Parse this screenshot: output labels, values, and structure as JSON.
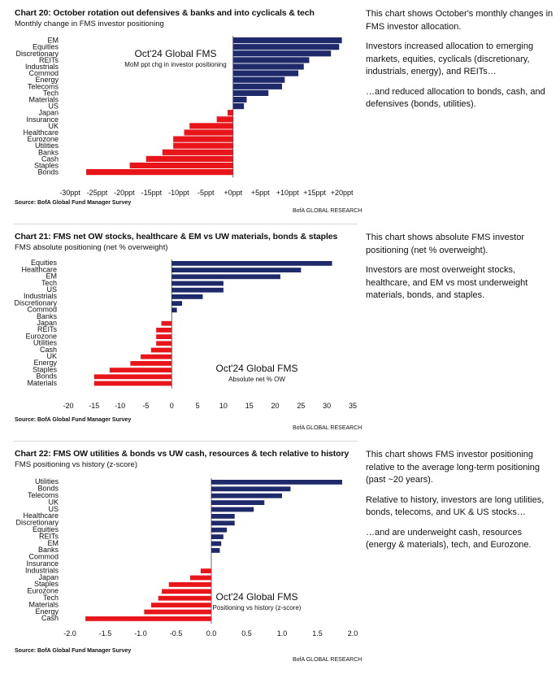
{
  "chart_data": [
    {
      "type": "bar",
      "orientation": "horizontal",
      "title": "Chart 20: October rotation out defensives & banks and into cyclicals & tech",
      "subtitle": "Monthly change in FMS investor positioning",
      "annotation_title": "Oct'24 Global FMS",
      "annotation_sub": "MoM ppt chg in investor positioning",
      "source": "Source: BofA Global Fund Manager Survey",
      "brand": "BofA GLOBAL RESEARCH",
      "categories": [
        "EM",
        "Equities",
        "Discretionary",
        "REITs",
        "Industrials",
        "Commod",
        "Energy",
        "Telecoms",
        "Tech",
        "Materials",
        "US",
        "Japan",
        "Insurance",
        "UK",
        "Healthcare",
        "Eurozone",
        "Utilities",
        "Banks",
        "Cash",
        "Staples",
        "Bonds"
      ],
      "values": [
        20,
        19.5,
        18,
        14,
        13,
        12,
        9.5,
        9,
        6.5,
        2.5,
        2,
        -1,
        -3,
        -8,
        -9,
        -11,
        -11,
        -13,
        -16,
        -19,
        -27
      ],
      "xlim": [
        -30,
        22
      ],
      "ticks": [
        -30,
        -25,
        -20,
        -15,
        -10,
        -5,
        0,
        5,
        10,
        15,
        20
      ],
      "tick_labels": [
        "-30ppt",
        "-25ppt",
        "-20ppt",
        "-15ppt",
        "-10ppt",
        "-5ppt",
        "+0ppt",
        "+5ppt",
        "+10ppt",
        "+15ppt",
        "+20ppt"
      ],
      "colors": {
        "positive": "#1f2a6b",
        "negative": "#e8161b"
      }
    },
    {
      "type": "bar",
      "orientation": "horizontal",
      "title": "Chart 21: FMS net OW stocks, healthcare & EM vs UW materials, bonds & staples",
      "subtitle": "FMS absolute positioning (net % overweight)",
      "annotation_title": "Oct'24 Global FMS",
      "annotation_sub": "Absolute net % OW",
      "source": "Source: BofA Global Fund Manager Survey",
      "brand": "BofA GLOBAL RESEARCH",
      "categories": [
        "Equities",
        "Healthcare",
        "EM",
        "Tech",
        "US",
        "Industrials",
        "Discretionary",
        "Commod",
        "Banks",
        "Japan",
        "REITs",
        "Eurozone",
        "Utilities",
        "Cash",
        "UK",
        "Energy",
        "Staples",
        "Bonds",
        "Materials"
      ],
      "values": [
        31,
        25,
        21,
        10,
        10,
        6,
        2,
        1,
        0,
        -2,
        -3,
        -3,
        -3,
        -4,
        -6,
        -8,
        -12,
        -15,
        -15
      ],
      "xlim": [
        -20,
        35
      ],
      "ticks": [
        -20,
        -15,
        -10,
        -5,
        0,
        5,
        10,
        15,
        20,
        25,
        30,
        35
      ],
      "tick_labels": [
        "-20",
        "-15",
        "-10",
        "-5",
        "0",
        "5",
        "10",
        "15",
        "20",
        "25",
        "30",
        "35"
      ],
      "colors": {
        "positive": "#1f2a6b",
        "negative": "#e8161b"
      }
    },
    {
      "type": "bar",
      "orientation": "horizontal",
      "title": "Chart 22: FMS OW utilities & bonds vs UW cash, resources & tech relative to history",
      "subtitle": "FMS positioning vs history (z-score)",
      "annotation_title": "Oct'24 Global FMS",
      "annotation_sub": "Positioning vs history (z-score)",
      "source": "Source: BofA Global Fund Manager Survey",
      "brand": "BofA GLOBAL RESEARCH",
      "categories": [
        "Utilities",
        "Bonds",
        "Telecoms",
        "UK",
        "US",
        "Healthcare",
        "Discretionary",
        "Equities",
        "REITs",
        "EM",
        "Banks",
        "Commod",
        "Insurance",
        "Industrials",
        "Japan",
        "Staples",
        "Eurozone",
        "Tech",
        "Materials",
        "Energy",
        "Cash"
      ],
      "values": [
        1.85,
        1.12,
        1.0,
        0.75,
        0.6,
        0.33,
        0.33,
        0.22,
        0.17,
        0.14,
        0.12,
        0.0,
        0.0,
        -0.15,
        -0.3,
        -0.6,
        -0.7,
        -0.75,
        -0.85,
        -0.95,
        -1.78
      ],
      "xlim": [
        -2.0,
        2.0
      ],
      "ticks": [
        -2.0,
        -1.5,
        -1.0,
        -0.5,
        0.0,
        0.5,
        1.0,
        1.5,
        2.0
      ],
      "tick_labels": [
        "-2.0",
        "-1.5",
        "-1.0",
        "-0.5",
        "0.0",
        "0.5",
        "1.0",
        "1.5",
        "2.0"
      ],
      "colors": {
        "positive": "#1f2a6b",
        "negative": "#e8161b"
      }
    }
  ],
  "commentary": [
    {
      "p1": "This chart shows October's monthly changes in FMS investor allocation.",
      "p2": "Investors increased allocation to emerging markets, equities, cyclicals (discretionary, industrials, energy), and REITs…",
      "p3": "…and reduced allocation to bonds, cash, and defensives (bonds, utilities)."
    },
    {
      "p1": "This chart shows absolute FMS investor positioning (net % overweight).",
      "p2": "Investors are most overweight stocks, healthcare, and EM vs most underweight materials, bonds, and staples.",
      "p3": ""
    },
    {
      "p1": "This chart shows FMS investor positioning relative to the average long-term positioning (past ~20 years).",
      "p2": "Relative to history, investors are long utilities, bonds, telecoms, and UK & US stocks…",
      "p3": "…and are underweight cash, resources (energy & materials), tech, and Eurozone."
    }
  ]
}
